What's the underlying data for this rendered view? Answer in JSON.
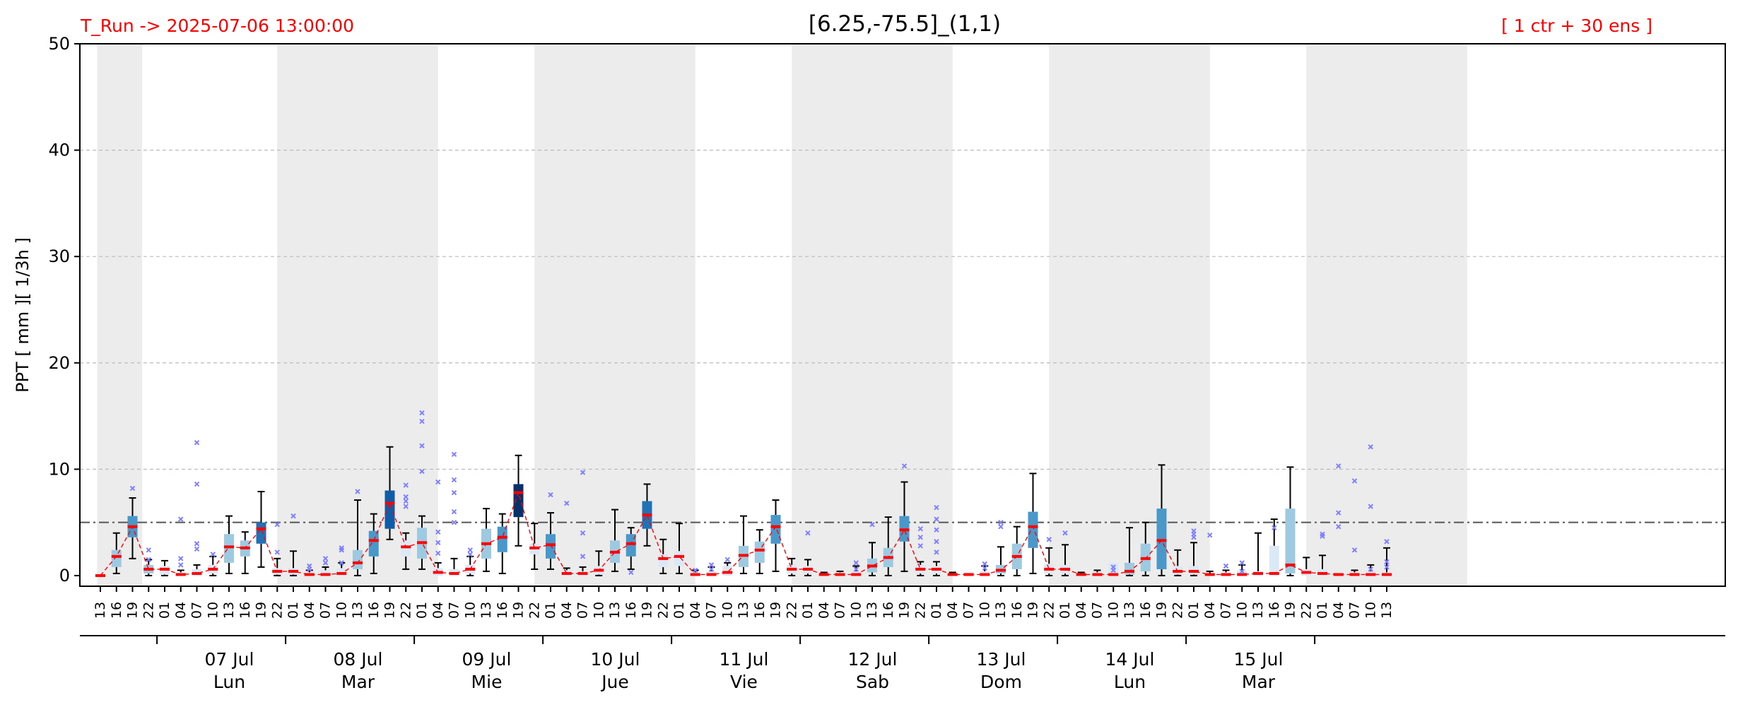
{
  "header": {
    "run_label": "T_Run -> 2025-07-06  13:00:00",
    "title": "[6.25,-75.5]_(1,1)",
    "ensemble_label": "[ 1 ctr + 30 ens ]"
  },
  "colors": {
    "header_accent": "#ff0000",
    "median_line": "#ff0000",
    "night_band": "#ececec",
    "box_light": "#dbe9f6",
    "box_mid": "#9ecae1",
    "box_med": "#4a98c9",
    "box_dark": "#2171b5",
    "box_darkest": "#08306b",
    "outlier": "#8080ff",
    "threshold": "#555555"
  },
  "chart_data": {
    "type": "box",
    "ylabel": "PPT  [ mm ][ 1/3h ]",
    "ylim": [
      -1,
      50
    ],
    "yticks": [
      0,
      10,
      20,
      30,
      40,
      50
    ],
    "threshold_line": 5,
    "grid": "horizontal dashed",
    "hour_ticks": [
      "13",
      "16",
      "19",
      "22",
      "01",
      "04",
      "07",
      "10",
      "13",
      "16",
      "19",
      "22",
      "01",
      "04",
      "07",
      "10",
      "13",
      "16",
      "19",
      "22",
      "01",
      "04",
      "07",
      "10",
      "13",
      "16",
      "19",
      "22",
      "01",
      "04",
      "07",
      "10",
      "13",
      "16",
      "19",
      "22",
      "01",
      "04",
      "07",
      "10",
      "13",
      "16",
      "19",
      "22",
      "01",
      "04",
      "07",
      "10",
      "13",
      "16",
      "19",
      "22",
      "01",
      "04",
      "07",
      "10",
      "13",
      "16",
      "19",
      "22",
      "01",
      "04",
      "07",
      "10",
      "13",
      "16",
      "19",
      "22",
      "01",
      "04",
      "07",
      "10",
      "13",
      "16",
      "19",
      "22",
      "01",
      "04",
      "07",
      "10",
      "13"
    ],
    "days": [
      {
        "date": "07 Jul",
        "weekday": "Lun"
      },
      {
        "date": "08 Jul",
        "weekday": "Mar"
      },
      {
        "date": "09 Jul",
        "weekday": "Mie"
      },
      {
        "date": "10 Jul",
        "weekday": "Jue"
      },
      {
        "date": "11 Jul",
        "weekday": "Vie"
      },
      {
        "date": "12 Jul",
        "weekday": "Sab"
      },
      {
        "date": "13 Jul",
        "weekday": "Dom"
      },
      {
        "date": "14 Jul",
        "weekday": "Lun"
      },
      {
        "date": "15 Jul",
        "weekday": "Mar"
      }
    ],
    "medians": [
      0,
      1.8,
      4.6,
      0.6,
      0.6,
      0.1,
      0.2,
      0.6,
      2.7,
      2.6,
      4.4,
      0.4,
      0.4,
      0.1,
      0.1,
      0.2,
      1.2,
      3.3,
      6.8,
      2.7,
      3.1,
      0.3,
      0.2,
      0.6,
      3.0,
      3.6,
      7.8,
      2.6,
      2.9,
      0.2,
      0.2,
      0.5,
      2.2,
      3.0,
      5.7,
      1.6,
      1.8,
      0.1,
      0.1,
      0.3,
      1.9,
      2.4,
      4.6,
      0.6,
      0.6,
      0.1,
      0.1,
      0.1,
      0.9,
      1.7,
      4.3,
      0.6,
      0.6,
      0.1,
      0.1,
      0.1,
      0.5,
      1.8,
      4.6,
      0.6,
      0.6,
      0.1,
      0.1,
      0.1,
      0.4,
      1.6,
      3.3,
      0.4,
      0.4,
      0.1,
      0.1,
      0.1,
      0.2,
      0.2,
      1.0,
      0.3,
      0.2,
      0.1,
      0.1,
      0.1,
      0.1
    ],
    "q1": [
      0,
      0.8,
      3.6,
      0.2,
      0.1,
      0,
      0,
      0.2,
      1.2,
      1.8,
      3.0,
      0.1,
      0.1,
      0,
      0,
      0,
      0.6,
      1.8,
      4.4,
      1.8,
      1.6,
      0,
      0,
      0.2,
      1.6,
      2.2,
      5.5,
      2.0,
      1.6,
      0,
      0,
      0.1,
      1.2,
      1.8,
      4.4,
      0.8,
      0.9,
      0,
      0,
      0,
      0.8,
      1.2,
      3.0,
      0.2,
      0.2,
      0,
      0,
      0,
      0.3,
      0.8,
      3.2,
      0.2,
      0.2,
      0,
      0,
      0,
      0.2,
      0.6,
      2.6,
      0.2,
      0.2,
      0,
      0,
      0,
      0.1,
      0.4,
      0.6,
      0.1,
      0.1,
      0,
      0,
      0,
      0,
      0,
      0.2,
      0,
      0,
      0,
      0,
      0,
      0
    ],
    "q3": [
      0,
      2.4,
      5.6,
      1.0,
      0.9,
      0.3,
      0.6,
      1.0,
      3.9,
      3.3,
      5.0,
      0.7,
      0.7,
      0.3,
      0.5,
      0.7,
      2.4,
      4.2,
      8.0,
      3.3,
      4.5,
      0.7,
      0.6,
      1.0,
      4.4,
      4.6,
      8.6,
      3.0,
      3.9,
      0.5,
      0.4,
      0.9,
      3.3,
      3.9,
      7.0,
      2.0,
      2.3,
      0.3,
      0.4,
      0.9,
      2.8,
      3.2,
      5.7,
      1.0,
      0.9,
      0.2,
      0.3,
      0.4,
      1.6,
      2.6,
      5.6,
      1.0,
      0.9,
      0.2,
      0.3,
      0.4,
      1.0,
      3.0,
      6.0,
      1.1,
      1.0,
      0.2,
      0.3,
      1.2,
      1.2,
      3.0,
      6.3,
      0.9,
      0.9,
      0.2,
      0.3,
      0.5,
      0.4,
      2.8,
      6.3,
      0.6,
      0.6,
      0.3,
      0.3,
      0.4,
      0.3
    ],
    "whisk_lo": [
      0,
      0.2,
      1.6,
      0,
      0,
      0,
      0,
      0,
      0.2,
      0.2,
      0.8,
      0,
      0,
      0,
      0,
      0,
      0,
      0.2,
      3.4,
      0.6,
      0.6,
      0,
      0,
      0,
      0.4,
      0.2,
      2.8,
      0.6,
      0.6,
      0,
      0,
      0,
      0.4,
      0.6,
      2.8,
      0.2,
      0.2,
      0,
      0,
      0,
      0.2,
      0.2,
      0.4,
      0,
      0,
      0,
      0,
      0,
      0,
      0,
      0.4,
      0,
      0,
      0,
      0,
      0,
      0,
      0,
      0.2,
      0,
      0,
      0,
      0,
      0,
      0,
      0,
      0,
      0,
      0,
      0,
      0,
      0,
      0,
      0,
      0,
      0,
      0,
      0,
      0,
      0,
      0
    ],
    "whisk_hi": [
      0,
      4.0,
      7.3,
      1.5,
      1.4,
      0.5,
      1.0,
      1.8,
      5.6,
      4.1,
      7.9,
      1.6,
      2.3,
      0.5,
      0.8,
      1.2,
      7.1,
      5.8,
      12.1,
      4.0,
      5.6,
      1.2,
      1.6,
      1.8,
      6.3,
      5.8,
      11.3,
      4.9,
      5.9,
      0.7,
      0.8,
      2.3,
      6.2,
      4.5,
      8.6,
      3.4,
      4.9,
      0.5,
      0.8,
      1.2,
      5.6,
      4.3,
      7.1,
      1.6,
      1.5,
      0.3,
      0.4,
      0.9,
      3.1,
      5.5,
      8.8,
      1.3,
      1.3,
      0.3,
      0.3,
      0.9,
      2.7,
      4.6,
      9.6,
      2.6,
      2.9,
      0.3,
      0.5,
      1.0,
      4.5,
      5.0,
      10.4,
      2.4,
      3.1,
      0.4,
      0.5,
      1.0,
      4.0,
      5.3,
      10.2,
      1.7,
      1.9,
      0.3,
      0.5,
      1.0,
      2.6
    ],
    "box_color_index": [
      0,
      1,
      2,
      1,
      0,
      0,
      0,
      0,
      1,
      1,
      3,
      0,
      0,
      0,
      0,
      0,
      1,
      2,
      4,
      0,
      1,
      0,
      0,
      0,
      1,
      2,
      5,
      0,
      2,
      0,
      0,
      0,
      1,
      2,
      3,
      0,
      0,
      0,
      0,
      0,
      1,
      1,
      2,
      0,
      0,
      0,
      0,
      0,
      1,
      1,
      2,
      0,
      0,
      0,
      0,
      0,
      1,
      1,
      2,
      0,
      0,
      0,
      0,
      0,
      1,
      1,
      2,
      0,
      0,
      0,
      0,
      0,
      0,
      0,
      1,
      0,
      0,
      0,
      0,
      0,
      0
    ],
    "outliers": [
      [
        2,
        8.2
      ],
      [
        3,
        1.5
      ],
      [
        3,
        2.4
      ],
      [
        5,
        1.0
      ],
      [
        5,
        1.6
      ],
      [
        5,
        5.3
      ],
      [
        6,
        2.5
      ],
      [
        6,
        3.0
      ],
      [
        6,
        8.6
      ],
      [
        6,
        12.5
      ],
      [
        7,
        2.0
      ],
      [
        11,
        2.2
      ],
      [
        11,
        4.8
      ],
      [
        12,
        5.6
      ],
      [
        13,
        0.6
      ],
      [
        13,
        0.9
      ],
      [
        14,
        1.2
      ],
      [
        14,
        1.6
      ],
      [
        15,
        1.2
      ],
      [
        15,
        2.4
      ],
      [
        15,
        2.6
      ],
      [
        16,
        7.9
      ],
      [
        19,
        6.5
      ],
      [
        19,
        7.0
      ],
      [
        19,
        7.4
      ],
      [
        19,
        8.5
      ],
      [
        20,
        9.8
      ],
      [
        20,
        12.2
      ],
      [
        20,
        14.5
      ],
      [
        20,
        15.3
      ],
      [
        21,
        2.1
      ],
      [
        21,
        3.1
      ],
      [
        21,
        4.1
      ],
      [
        21,
        8.8
      ],
      [
        22,
        5.0
      ],
      [
        22,
        6.0
      ],
      [
        22,
        7.8
      ],
      [
        22,
        9.0
      ],
      [
        22,
        11.4
      ],
      [
        23,
        2.0
      ],
      [
        23,
        2.4
      ],
      [
        28,
        7.6
      ],
      [
        29,
        6.8
      ],
      [
        30,
        1.8
      ],
      [
        30,
        4.0
      ],
      [
        30,
        9.7
      ],
      [
        33,
        0.3
      ],
      [
        37,
        0.5
      ],
      [
        38,
        0.6
      ],
      [
        38,
        1.0
      ],
      [
        39,
        1.5
      ],
      [
        44,
        4.0
      ],
      [
        47,
        0.6
      ],
      [
        47,
        1.2
      ],
      [
        48,
        4.8
      ],
      [
        50,
        10.3
      ],
      [
        51,
        2.8
      ],
      [
        51,
        3.6
      ],
      [
        51,
        4.4
      ],
      [
        52,
        2.2
      ],
      [
        52,
        3.2
      ],
      [
        52,
        4.3
      ],
      [
        52,
        5.3
      ],
      [
        52,
        6.4
      ],
      [
        55,
        0.7
      ],
      [
        55,
        1.1
      ],
      [
        56,
        4.6
      ],
      [
        56,
        5.0
      ],
      [
        59,
        3.4
      ],
      [
        60,
        4.0
      ],
      [
        63,
        0.5
      ],
      [
        63,
        0.8
      ],
      [
        68,
        3.6
      ],
      [
        68,
        3.9
      ],
      [
        68,
        4.2
      ],
      [
        69,
        3.8
      ],
      [
        70,
        0.9
      ],
      [
        71,
        0.4
      ],
      [
        71,
        1.2
      ],
      [
        73,
        4.5
      ],
      [
        76,
        3.7
      ],
      [
        76,
        3.9
      ],
      [
        77,
        4.6
      ],
      [
        77,
        5.9
      ],
      [
        77,
        10.3
      ],
      [
        78,
        2.4
      ],
      [
        78,
        8.9
      ],
      [
        79,
        0.6
      ],
      [
        79,
        6.5
      ],
      [
        79,
        12.1
      ],
      [
        80,
        0.8
      ],
      [
        80,
        1.3
      ],
      [
        80,
        3.2
      ]
    ]
  }
}
